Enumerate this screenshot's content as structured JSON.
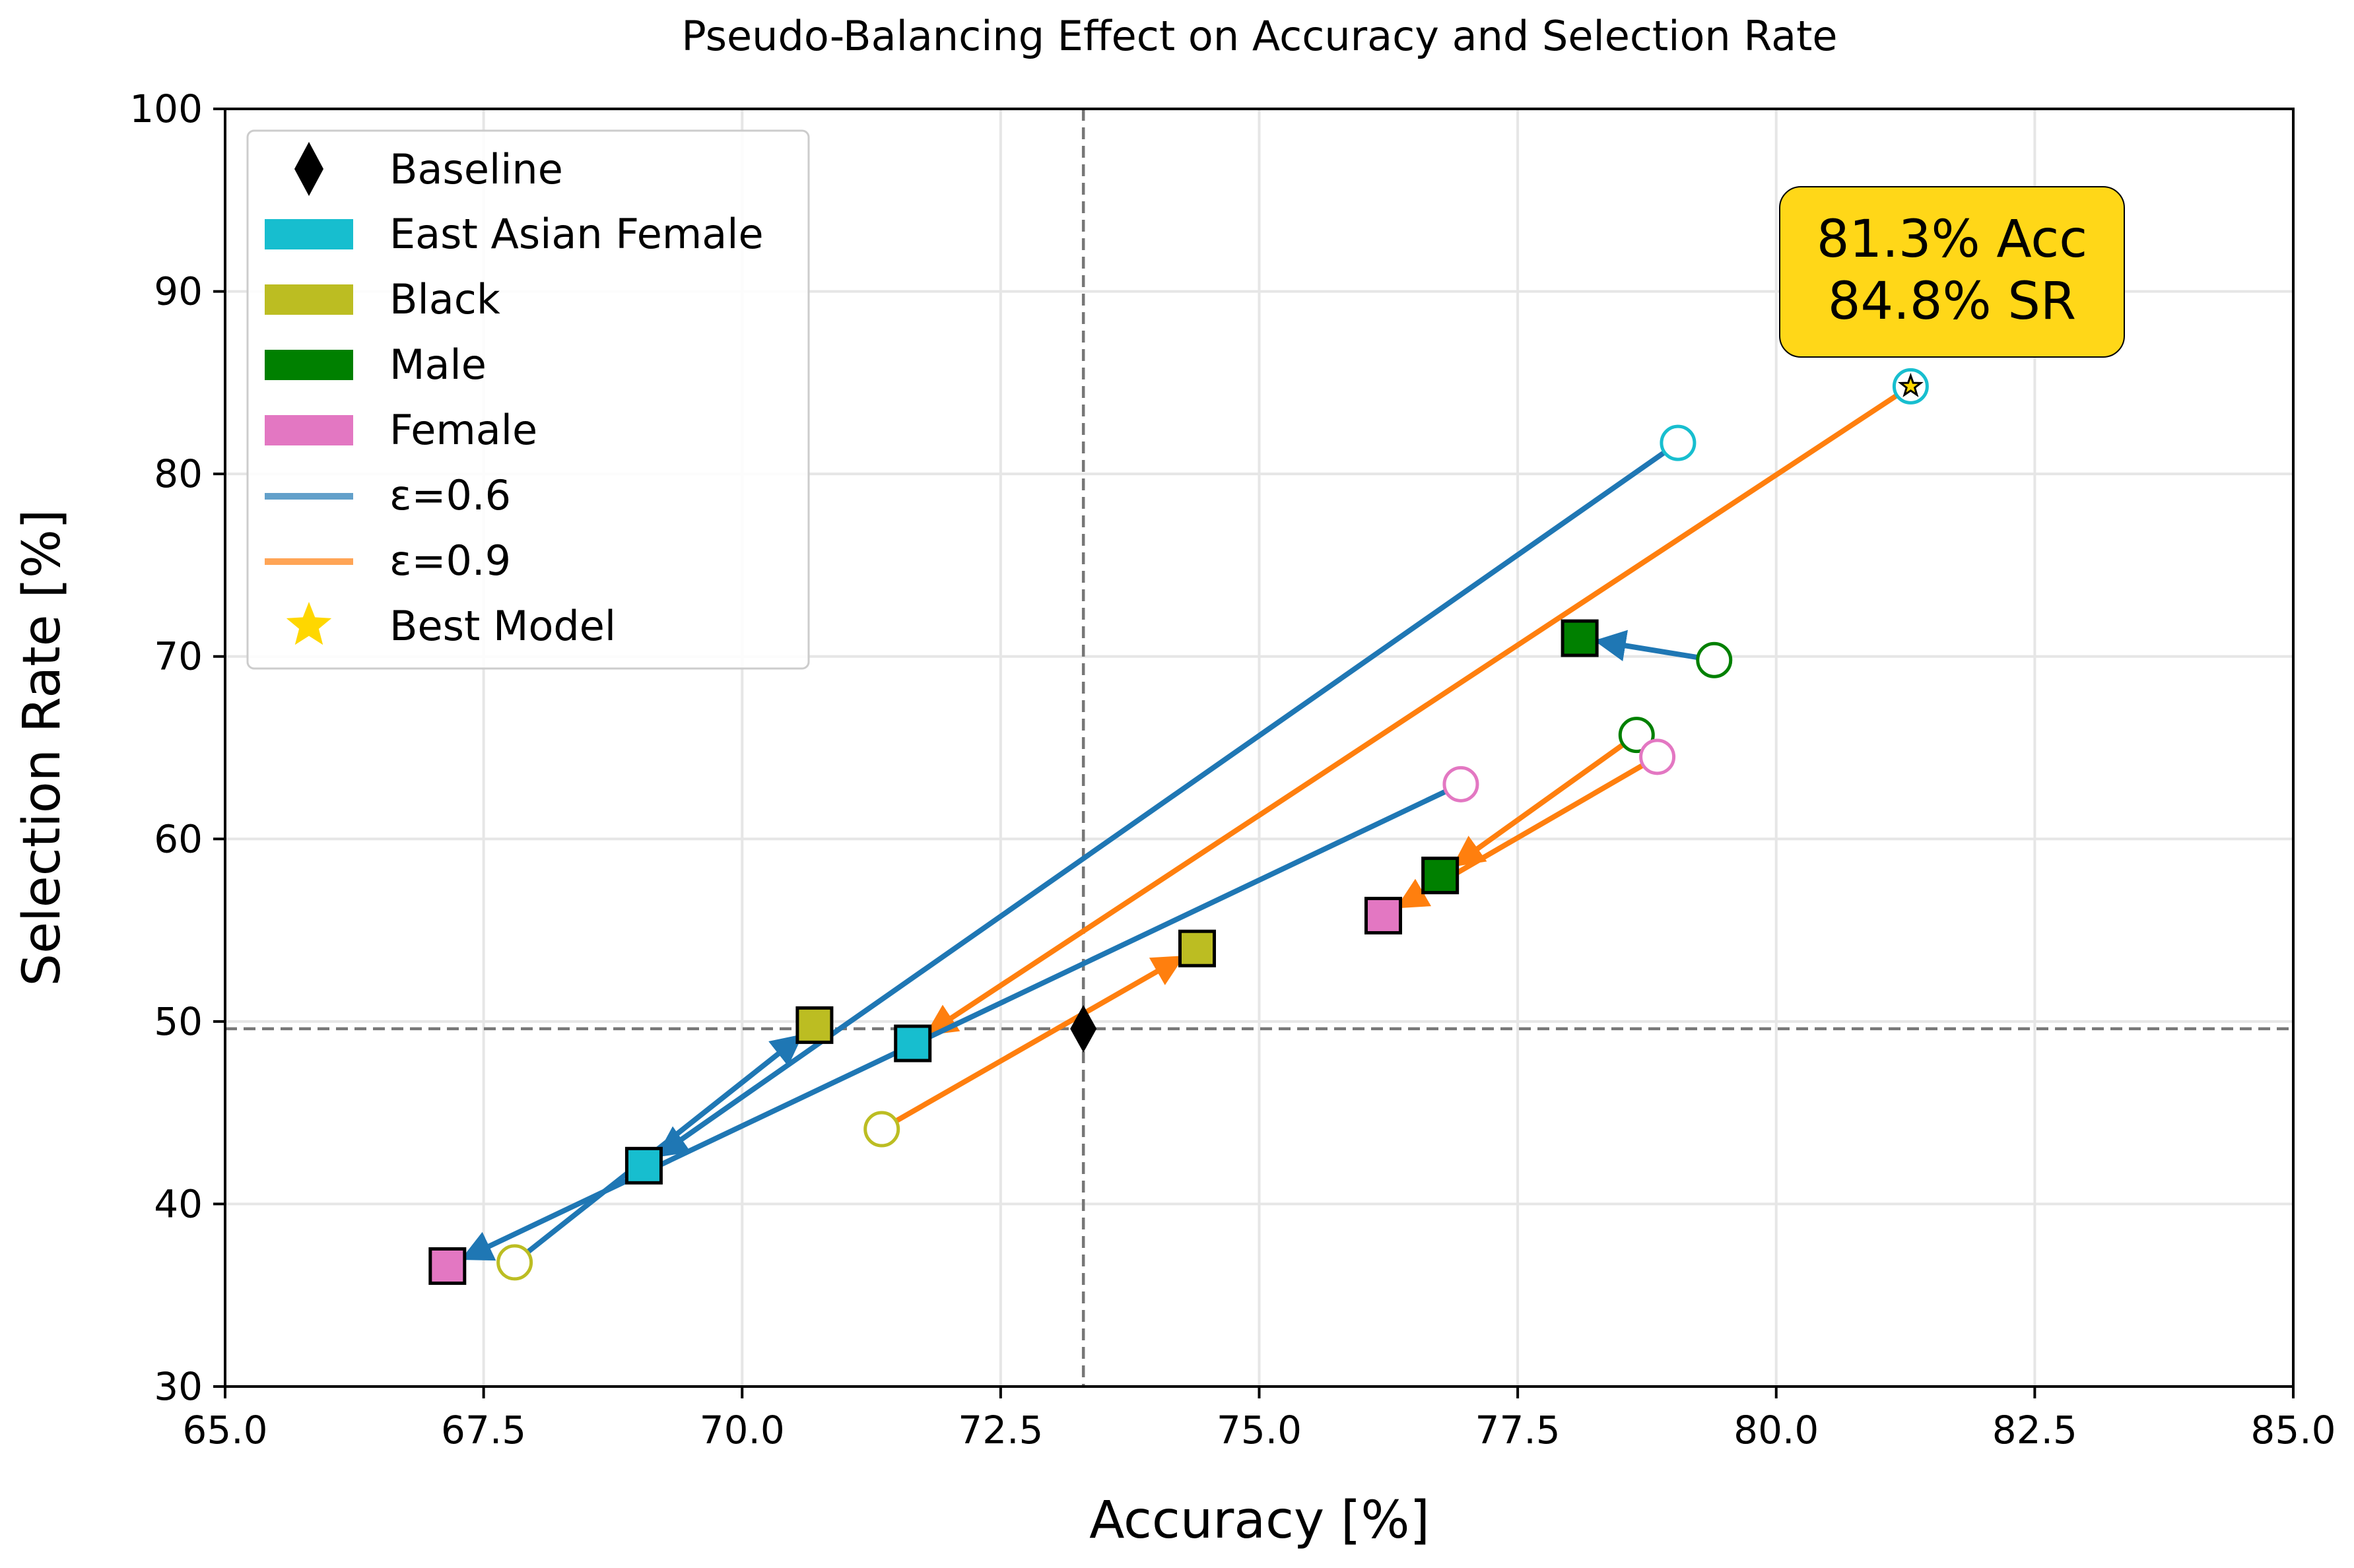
{
  "chart_data": {
    "type": "scatter",
    "title": "Pseudo-Balancing Effect on Accuracy and Selection Rate",
    "xlabel": "Accuracy [%]",
    "ylabel": "Selection Rate [%]",
    "xlim": [
      65.0,
      85.0
    ],
    "ylim": [
      30,
      100
    ],
    "x_ticks": [
      "65.0",
      "67.5",
      "70.0",
      "72.5",
      "75.0",
      "77.5",
      "80.0",
      "82.5",
      "85.0"
    ],
    "y_ticks": [
      "30",
      "40",
      "50",
      "60",
      "70",
      "80",
      "90",
      "100"
    ],
    "grid": true,
    "legend_placement": "top-left",
    "baseline": {
      "name": "Baseline",
      "x": 73.3,
      "y": 49.6,
      "color": "#000000"
    },
    "groups": [
      {
        "name": "East Asian Female",
        "color": "#17becf"
      },
      {
        "name": "Black",
        "color": "#bcbd22"
      },
      {
        "name": "Male",
        "color": "#008000"
      },
      {
        "name": "Female",
        "color": "#e377c2"
      }
    ],
    "epsilons": [
      {
        "name": "ε=0.6",
        "color": "#1f77b4"
      },
      {
        "name": "ε=0.9",
        "color": "#ff7f0e"
      }
    ],
    "best_model_label": "Best Model",
    "best_model_color": "#ffd700",
    "transitions": [
      {
        "group": "East Asian Female",
        "epsilon": "ε=0.6",
        "from": [
          79.05,
          81.7
        ],
        "to": [
          69.05,
          42.1
        ]
      },
      {
        "group": "East Asian Female",
        "epsilon": "ε=0.9",
        "from": [
          81.3,
          84.8
        ],
        "to": [
          71.65,
          48.8
        ]
      },
      {
        "group": "Black",
        "epsilon": "ε=0.6",
        "from": [
          67.8,
          36.8
        ],
        "to": [
          70.7,
          49.8
        ]
      },
      {
        "group": "Black",
        "epsilon": "ε=0.9",
        "from": [
          71.35,
          44.1
        ],
        "to": [
          74.4,
          54.0
        ]
      },
      {
        "group": "Male",
        "epsilon": "ε=0.6",
        "from": [
          79.4,
          69.8
        ],
        "to": [
          78.1,
          71.0
        ]
      },
      {
        "group": "Male",
        "epsilon": "ε=0.9",
        "from": [
          78.65,
          65.7
        ],
        "to": [
          76.75,
          58.0
        ]
      },
      {
        "group": "Female",
        "epsilon": "ε=0.6",
        "from": [
          76.95,
          63.0
        ],
        "to": [
          67.15,
          36.6
        ]
      },
      {
        "group": "Female",
        "epsilon": "ε=0.9",
        "from": [
          78.85,
          64.5
        ],
        "to": [
          76.2,
          55.8
        ]
      }
    ],
    "best_model": {
      "x": 81.3,
      "y": 84.8
    },
    "annotation": {
      "line1": "81.3% Acc",
      "line2": "84.8% SR",
      "color": "#ffd718"
    }
  }
}
